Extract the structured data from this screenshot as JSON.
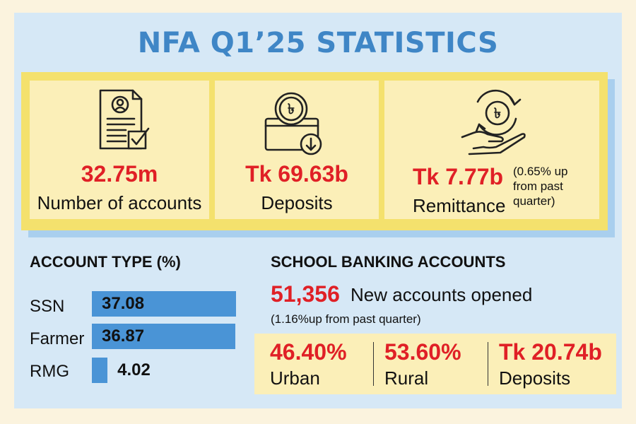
{
  "title": "NFA Q1’25 STATISTICS",
  "cards": [
    {
      "value": "32.75m",
      "label": "Number of accounts",
      "icon": "document-user-icon"
    },
    {
      "value": "Tk 69.63b",
      "label": "Deposits",
      "icon": "taka-deposit-box-icon"
    },
    {
      "value": "Tk 7.77b",
      "label": "Remittance",
      "note_lines": [
        "(0.65% up",
        "from past",
        "quarter)"
      ],
      "icon": "hand-taka-cycle-icon"
    }
  ],
  "account_type": {
    "heading": "ACCOUNT TYPE (%)",
    "rows": [
      {
        "label": "SSN",
        "value": "37.08",
        "fraction": 37.08
      },
      {
        "label": "Farmer",
        "value": "36.87",
        "fraction": 36.87
      },
      {
        "label": "RMG",
        "value": "4.02",
        "fraction": 4.02
      }
    ]
  },
  "school_banking": {
    "heading": "SCHOOL BANKING ACCOUNTS",
    "new_accounts_value": "51,356",
    "new_accounts_label": "New accounts opened",
    "growth_note": "(1.16%up from past quarter)",
    "stats": [
      {
        "value": "46.40%",
        "label": "Urban"
      },
      {
        "value": "53.60%",
        "label": "Rural"
      },
      {
        "value": "Tk 20.74b",
        "label": "Deposits"
      }
    ]
  },
  "colors": {
    "accent_blue": "#3f86c6",
    "bar_blue": "#4a94d6",
    "red": "#e02026",
    "card_yellow": "#fbefb8",
    "frame_yellow": "#f4e16d",
    "background_blue": "#d6e8f6"
  }
}
